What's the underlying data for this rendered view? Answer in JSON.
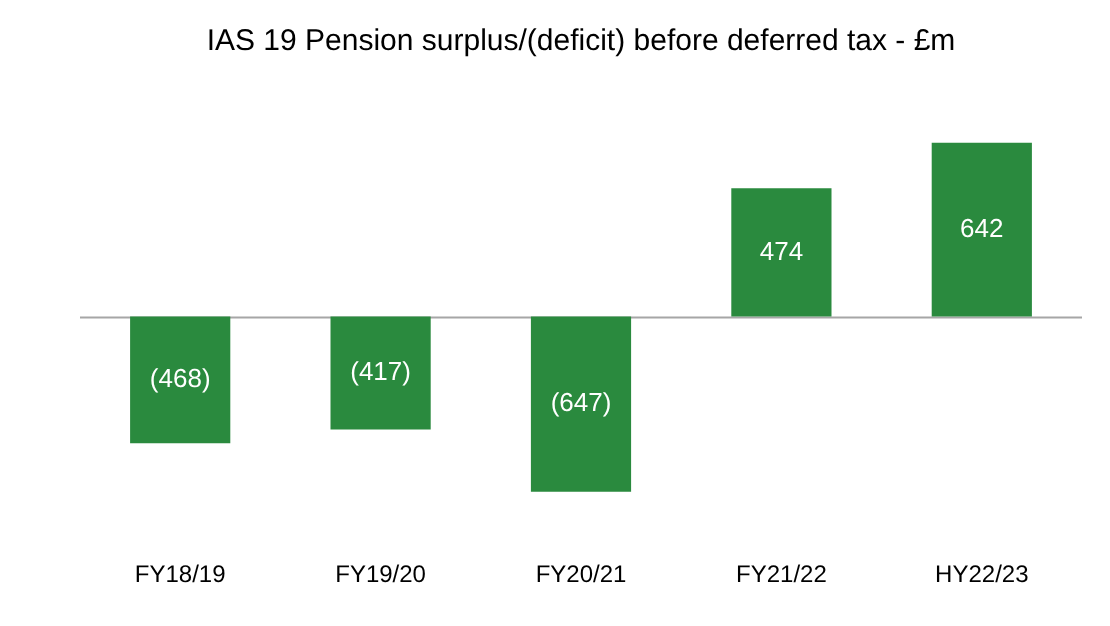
{
  "chart_data": {
    "type": "bar",
    "title": "IAS 19 Pension surplus/(deficit) before deferred tax - £m",
    "categories": [
      "FY18/19",
      "FY19/20",
      "FY20/21",
      "FY21/22",
      "HY22/23"
    ],
    "values": [
      -468,
      -417,
      -647,
      474,
      642
    ],
    "value_labels": [
      "(468)",
      "(417)",
      "(647)",
      "474",
      "642"
    ],
    "color": "#2a8a3e",
    "tick_labels": "x",
    "grid": false,
    "legend": false
  }
}
